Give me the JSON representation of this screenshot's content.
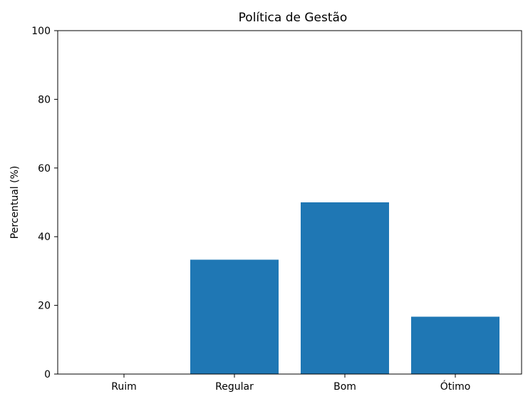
{
  "chart_data": {
    "type": "bar",
    "title": "Política de Gestão",
    "xlabel": "",
    "ylabel": "Percentual (%)",
    "categories": [
      "Ruim",
      "Regular",
      "Bom",
      "Ótimo"
    ],
    "values": [
      0,
      33.3,
      50.0,
      16.7
    ],
    "ylim": [
      0,
      100
    ],
    "yticks": [
      0,
      20,
      40,
      60,
      80,
      100
    ],
    "ytick_labels": [
      "0",
      "20",
      "40",
      "60",
      "80",
      "100"
    ],
    "grid": false,
    "bar_color": "#1f77b4",
    "axis_color": "#000000"
  }
}
